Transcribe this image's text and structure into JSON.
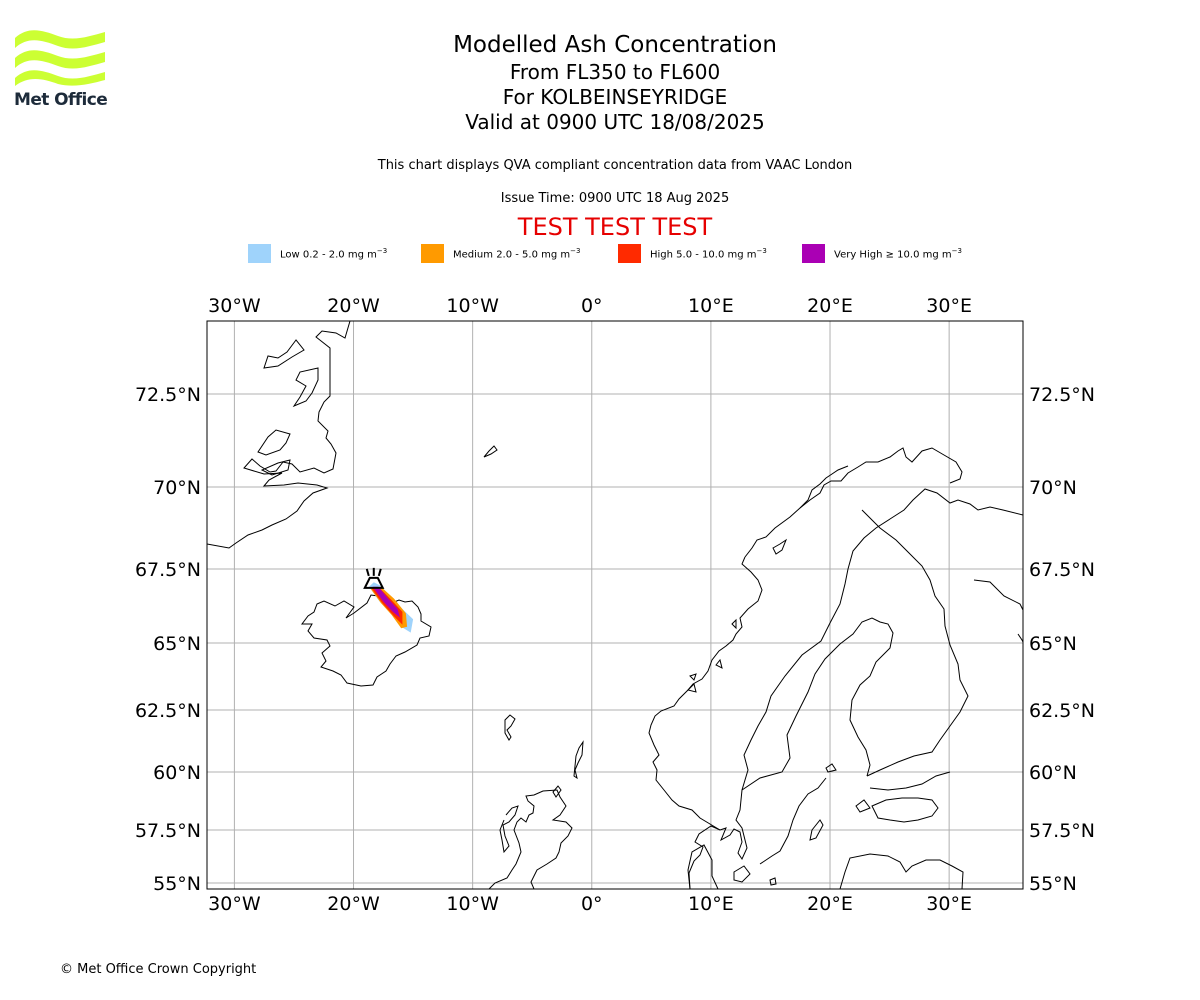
{
  "logo": {
    "text": "Met Office",
    "color": "#ccff33"
  },
  "titles": {
    "main": "Modelled Ash Concentration",
    "levels": "From FL350 to FL600",
    "volcano": "For KOLBEINSEYRIDGE",
    "valid": "Valid at 0900 UTC 18/08/2025"
  },
  "compliance_note": "This chart displays QVA compliant concentration data from VAAC London",
  "issue_time": "Issue Time: 0900 UTC 18 Aug 2025",
  "test_banner": {
    "text": "TEST TEST TEST",
    "color": "#e60000"
  },
  "legend": [
    {
      "name": "Low",
      "range": "0.2 - 2.0 mg m",
      "sup": "−3",
      "color": "#9fd3fb"
    },
    {
      "name": "Medium",
      "range": "2.0 - 5.0 mg m",
      "sup": "−3",
      "color": "#ff9a00"
    },
    {
      "name": "High",
      "range": "5.0 - 10.0 mg m",
      "sup": "−3",
      "color": "#ff2a00"
    },
    {
      "name": "Very High",
      "range": "≥  10.0 mg m",
      "sup": "−3",
      "color": "#aa00b4"
    }
  ],
  "map": {
    "extent": {
      "lon": [
        -32.3,
        36.2
      ],
      "lat": [
        54.75,
        74.5
      ]
    },
    "lon_ticks": [
      {
        "value": -30,
        "label": "30°W"
      },
      {
        "value": -20,
        "label": "20°W"
      },
      {
        "value": -10,
        "label": "10°W"
      },
      {
        "value": 0,
        "label": "0°"
      },
      {
        "value": 10,
        "label": "10°E"
      },
      {
        "value": 20,
        "label": "20°E"
      },
      {
        "value": 30,
        "label": "30°E"
      }
    ],
    "lat_ticks": [
      {
        "value": 55,
        "label": "55°N"
      },
      {
        "value": 57.5,
        "label": "57.5°N"
      },
      {
        "value": 60,
        "label": "60°N"
      },
      {
        "value": 62.5,
        "label": "62.5°N"
      },
      {
        "value": 65,
        "label": "65°N"
      },
      {
        "value": 67.5,
        "label": "67.5°N"
      },
      {
        "value": 70,
        "label": "70°N"
      },
      {
        "value": 72.5,
        "label": "72.5°N"
      }
    ],
    "volcano": {
      "lon": -18.3,
      "lat": 67.2
    },
    "ash_plume": [
      {
        "level": "Low",
        "color": "#9fd3fb",
        "polygon": [
          [
            -18.7,
            66.9
          ],
          [
            -17.8,
            66.4
          ],
          [
            -16.9,
            66.0
          ],
          [
            -16.0,
            65.55
          ],
          [
            -15.2,
            65.35
          ],
          [
            -15.0,
            65.8
          ],
          [
            -15.9,
            66.15
          ],
          [
            -16.8,
            66.55
          ],
          [
            -17.8,
            66.95
          ],
          [
            -18.3,
            67.05
          ]
        ]
      },
      {
        "level": "Medium",
        "color": "#ff9a00",
        "polygon": [
          [
            -18.6,
            66.85
          ],
          [
            -17.7,
            66.35
          ],
          [
            -16.8,
            65.95
          ],
          [
            -16.0,
            65.5
          ],
          [
            -15.5,
            65.55
          ],
          [
            -15.6,
            66.0
          ],
          [
            -16.6,
            66.5
          ],
          [
            -17.7,
            66.9
          ]
        ]
      },
      {
        "level": "High",
        "color": "#ff2a00",
        "polygon": [
          [
            -18.5,
            66.85
          ],
          [
            -17.6,
            66.35
          ],
          [
            -16.6,
            65.9
          ],
          [
            -15.9,
            65.62
          ],
          [
            -15.9,
            66.05
          ],
          [
            -16.8,
            66.45
          ],
          [
            -17.8,
            66.85
          ]
        ]
      },
      {
        "level": "Very High",
        "color": "#aa00b4",
        "polygon": [
          [
            -18.4,
            66.9
          ],
          [
            -17.5,
            66.4
          ],
          [
            -16.7,
            66.05
          ],
          [
            -16.1,
            65.85
          ],
          [
            -16.3,
            66.15
          ],
          [
            -17.1,
            66.5
          ],
          [
            -17.9,
            66.9
          ]
        ]
      }
    ]
  },
  "copyright": "© Met Office Crown Copyright"
}
